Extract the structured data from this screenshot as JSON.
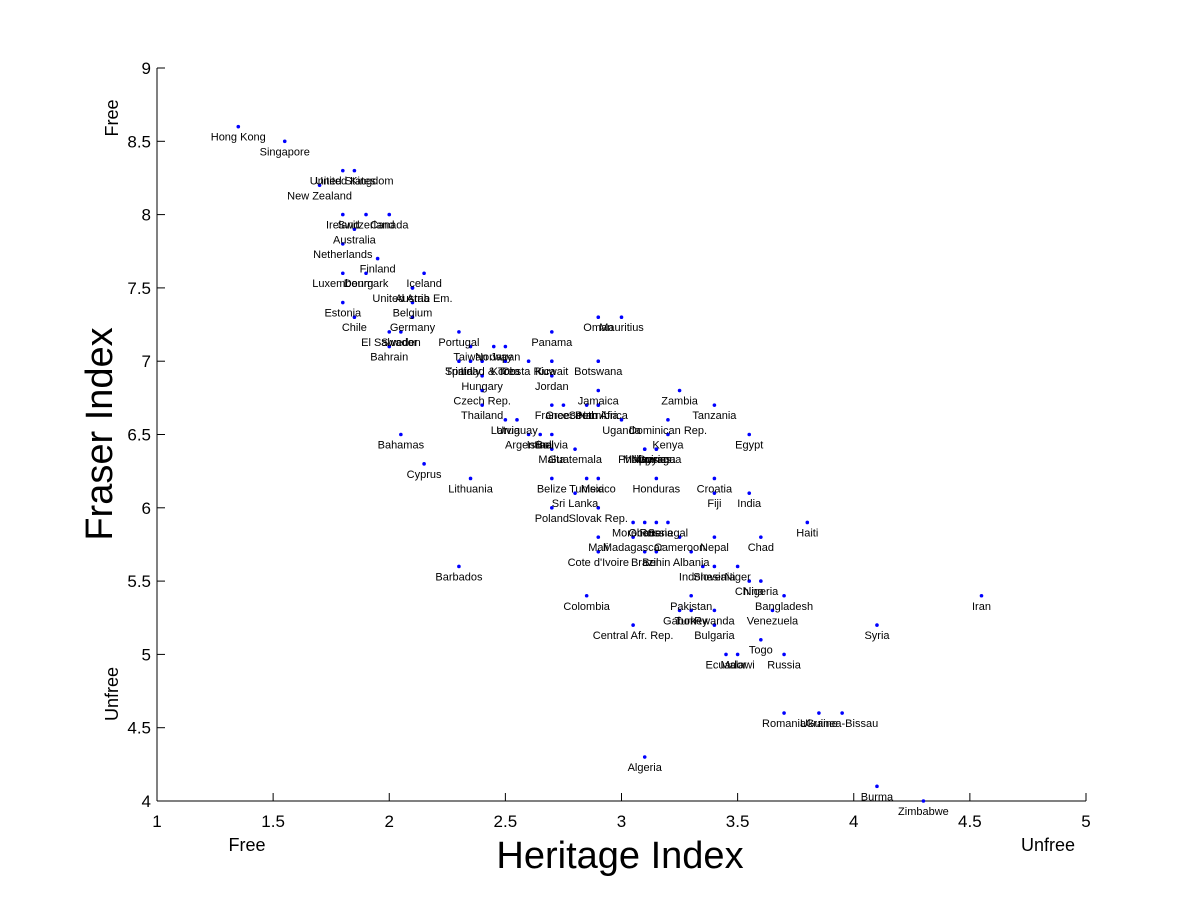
{
  "chart_data": {
    "type": "scatter",
    "xlabel": "Heritage Index",
    "ylabel": "Fraser Index",
    "xlim": [
      1,
      5
    ],
    "ylim": [
      4,
      9
    ],
    "xticks": [
      "1",
      "1.5",
      "2",
      "2.5",
      "3",
      "3.5",
      "4",
      "4.5",
      "5"
    ],
    "yticks": [
      "4",
      "4.5",
      "5",
      "5.5",
      "6",
      "6.5",
      "7",
      "7.5",
      "8",
      "8.5",
      "9"
    ],
    "grid": false,
    "marker_color": "#0000ff",
    "x_end_notes": {
      "low": "Free",
      "high": "Unfree"
    },
    "y_end_notes": {
      "high": "Free",
      "low": "Unfree"
    },
    "points": [
      {
        "label": "Hong Kong",
        "x": 1.35,
        "y": 8.6
      },
      {
        "label": "Singapore",
        "x": 1.55,
        "y": 8.5
      },
      {
        "label": "United States",
        "x": 1.8,
        "y": 8.3
      },
      {
        "label": "United Kingdom",
        "x": 1.85,
        "y": 8.3
      },
      {
        "label": "New Zealand",
        "x": 1.7,
        "y": 8.2
      },
      {
        "label": "Ireland",
        "x": 1.8,
        "y": 8.0
      },
      {
        "label": "Switzerland",
        "x": 1.9,
        "y": 8.0
      },
      {
        "label": "Canada",
        "x": 2.0,
        "y": 8.0
      },
      {
        "label": "Australia",
        "x": 1.85,
        "y": 7.9
      },
      {
        "label": "Netherlands",
        "x": 1.8,
        "y": 7.8
      },
      {
        "label": "Finland",
        "x": 1.95,
        "y": 7.7
      },
      {
        "label": "Luxembourg",
        "x": 1.8,
        "y": 7.6
      },
      {
        "label": "Denmark",
        "x": 1.9,
        "y": 7.6
      },
      {
        "label": "Iceland",
        "x": 2.15,
        "y": 7.6
      },
      {
        "label": "United Arab Em.",
        "x": 2.1,
        "y": 7.5
      },
      {
        "label": "Austria",
        "x": 2.1,
        "y": 7.5
      },
      {
        "label": "Estonia",
        "x": 1.8,
        "y": 7.4
      },
      {
        "label": "Belgium",
        "x": 2.1,
        "y": 7.4
      },
      {
        "label": "Chile",
        "x": 1.85,
        "y": 7.3
      },
      {
        "label": "Germany",
        "x": 2.1,
        "y": 7.3
      },
      {
        "label": "Oman",
        "x": 2.9,
        "y": 7.3
      },
      {
        "label": "Mauritius",
        "x": 3.0,
        "y": 7.3
      },
      {
        "label": "El Salvador",
        "x": 2.0,
        "y": 7.2
      },
      {
        "label": "Sweden",
        "x": 2.05,
        "y": 7.2
      },
      {
        "label": "Portugal",
        "x": 2.3,
        "y": 7.2
      },
      {
        "label": "Panama",
        "x": 2.7,
        "y": 7.2
      },
      {
        "label": "Bahrain",
        "x": 2.0,
        "y": 7.1
      },
      {
        "label": "Taiwan",
        "x": 2.35,
        "y": 7.1
      },
      {
        "label": "Norway",
        "x": 2.45,
        "y": 7.1
      },
      {
        "label": "Japan",
        "x": 2.5,
        "y": 7.1
      },
      {
        "label": "Korea",
        "x": 2.5,
        "y": 7.0
      },
      {
        "label": "Costa Rica",
        "x": 2.6,
        "y": 7.0
      },
      {
        "label": "Kuwait",
        "x": 2.7,
        "y": 7.0
      },
      {
        "label": "Spain",
        "x": 2.3,
        "y": 7.0
      },
      {
        "label": "Italy",
        "x": 2.35,
        "y": 7.0
      },
      {
        "label": "Trinidad & Tob.",
        "x": 2.4,
        "y": 7.0
      },
      {
        "label": "Botswana",
        "x": 2.9,
        "y": 7.0
      },
      {
        "label": "Hungary",
        "x": 2.4,
        "y": 6.9
      },
      {
        "label": "Jordan",
        "x": 2.7,
        "y": 6.9
      },
      {
        "label": "Jamaica",
        "x": 2.9,
        "y": 6.8
      },
      {
        "label": "Czech Rep.",
        "x": 2.4,
        "y": 6.8
      },
      {
        "label": "South Africa",
        "x": 2.9,
        "y": 6.7
      },
      {
        "label": "Zambia",
        "x": 3.25,
        "y": 6.8
      },
      {
        "label": "Tanzania",
        "x": 3.4,
        "y": 6.7
      },
      {
        "label": "Thailand",
        "x": 2.4,
        "y": 6.7
      },
      {
        "label": "France",
        "x": 2.7,
        "y": 6.7
      },
      {
        "label": "Greece",
        "x": 2.75,
        "y": 6.7
      },
      {
        "label": "Peru",
        "x": 2.85,
        "y": 6.7
      },
      {
        "label": "Namibia",
        "x": 2.9,
        "y": 6.7
      },
      {
        "label": "Uganda",
        "x": 3.0,
        "y": 6.6
      },
      {
        "label": "Dominican Rep.",
        "x": 3.2,
        "y": 6.6
      },
      {
        "label": "Latvia",
        "x": 2.5,
        "y": 6.6
      },
      {
        "label": "Uruguay",
        "x": 2.55,
        "y": 6.6
      },
      {
        "label": "Kenya",
        "x": 3.2,
        "y": 6.5
      },
      {
        "label": "Bahamas",
        "x": 2.05,
        "y": 6.5
      },
      {
        "label": "Argentina",
        "x": 2.6,
        "y": 6.5
      },
      {
        "label": "Israel",
        "x": 2.65,
        "y": 6.5
      },
      {
        "label": "Bolivia",
        "x": 2.7,
        "y": 6.5
      },
      {
        "label": "Guyana",
        "x": 3.15,
        "y": 6.4
      },
      {
        "label": "Egypt",
        "x": 3.55,
        "y": 6.5
      },
      {
        "label": "Malta",
        "x": 2.7,
        "y": 6.4
      },
      {
        "label": "Guatemala",
        "x": 2.8,
        "y": 6.4
      },
      {
        "label": "Philippines",
        "x": 3.1,
        "y": 6.4
      },
      {
        "label": "Malaysia",
        "x": 3.1,
        "y": 6.4
      },
      {
        "label": "Nicaragua",
        "x": 3.15,
        "y": 6.4
      },
      {
        "label": "Cyprus",
        "x": 2.15,
        "y": 6.3
      },
      {
        "label": "Lithuania",
        "x": 2.35,
        "y": 6.2
      },
      {
        "label": "Belize",
        "x": 2.7,
        "y": 6.2
      },
      {
        "label": "Tunisia",
        "x": 2.85,
        "y": 6.2
      },
      {
        "label": "Mexico",
        "x": 2.9,
        "y": 6.2
      },
      {
        "label": "Honduras",
        "x": 3.15,
        "y": 6.2
      },
      {
        "label": "Croatia",
        "x": 3.4,
        "y": 6.2
      },
      {
        "label": "Sri Lanka",
        "x": 2.8,
        "y": 6.1
      },
      {
        "label": "Fiji",
        "x": 3.4,
        "y": 6.1
      },
      {
        "label": "India",
        "x": 3.55,
        "y": 6.1
      },
      {
        "label": "Poland",
        "x": 2.7,
        "y": 6.0
      },
      {
        "label": "Slovak Rep.",
        "x": 2.9,
        "y": 6.0
      },
      {
        "label": "Haiti",
        "x": 3.8,
        "y": 5.9
      },
      {
        "label": "Morocco",
        "x": 3.05,
        "y": 5.9
      },
      {
        "label": "Ghana",
        "x": 3.1,
        "y": 5.9
      },
      {
        "label": "Russia",
        "x": 3.15,
        "y": 5.9
      },
      {
        "label": "Senegal",
        "x": 3.2,
        "y": 5.9
      },
      {
        "label": "Mali",
        "x": 2.9,
        "y": 5.8
      },
      {
        "label": "Madagascar",
        "x": 3.05,
        "y": 5.8
      },
      {
        "label": "Cameroon",
        "x": 3.25,
        "y": 5.8
      },
      {
        "label": "Nepal",
        "x": 3.4,
        "y": 5.8
      },
      {
        "label": "Chad",
        "x": 3.6,
        "y": 5.8
      },
      {
        "label": "Cote d'Ivoire",
        "x": 2.9,
        "y": 5.7
      },
      {
        "label": "Brazil",
        "x": 3.1,
        "y": 5.7
      },
      {
        "label": "Benin",
        "x": 3.15,
        "y": 5.7
      },
      {
        "label": "Albania",
        "x": 3.3,
        "y": 5.7
      },
      {
        "label": "Indonesia",
        "x": 3.35,
        "y": 5.6
      },
      {
        "label": "Slovenia",
        "x": 3.4,
        "y": 5.6
      },
      {
        "label": "Niger",
        "x": 3.5,
        "y": 5.6
      },
      {
        "label": "China",
        "x": 3.55,
        "y": 5.5
      },
      {
        "label": "Nigeria",
        "x": 3.6,
        "y": 5.5
      },
      {
        "label": "Barbados",
        "x": 2.3,
        "y": 5.6
      },
      {
        "label": "Iran",
        "x": 4.55,
        "y": 5.4
      },
      {
        "label": "Colombia",
        "x": 2.85,
        "y": 5.4
      },
      {
        "label": "Pakistan",
        "x": 3.3,
        "y": 5.4
      },
      {
        "label": "Bangladesh",
        "x": 3.7,
        "y": 5.4
      },
      {
        "label": "Gabon",
        "x": 3.25,
        "y": 5.3
      },
      {
        "label": "Turkey",
        "x": 3.3,
        "y": 5.3
      },
      {
        "label": "Rwanda",
        "x": 3.4,
        "y": 5.3
      },
      {
        "label": "Venezuela",
        "x": 3.65,
        "y": 5.3
      },
      {
        "label": "Central Afr. Rep.",
        "x": 3.05,
        "y": 5.2
      },
      {
        "label": "Bulgaria",
        "x": 3.4,
        "y": 5.2
      },
      {
        "label": "Syria",
        "x": 4.1,
        "y": 5.2
      },
      {
        "label": "Togo",
        "x": 3.6,
        "y": 5.1
      },
      {
        "label": "Ecuador",
        "x": 3.45,
        "y": 5.0
      },
      {
        "label": "Malawi",
        "x": 3.5,
        "y": 5.0
      },
      {
        "label": "Russia",
        "x": 3.7,
        "y": 5.0
      },
      {
        "label": "Romania",
        "x": 3.7,
        "y": 4.6
      },
      {
        "label": "Ukraine",
        "x": 3.85,
        "y": 4.6
      },
      {
        "label": "Guinea-Bissau",
        "x": 3.95,
        "y": 4.6
      },
      {
        "label": "Algeria",
        "x": 3.1,
        "y": 4.3
      },
      {
        "label": "Burma",
        "x": 4.1,
        "y": 4.1
      },
      {
        "label": "Zimbabwe",
        "x": 4.3,
        "y": 4.0
      }
    ]
  }
}
